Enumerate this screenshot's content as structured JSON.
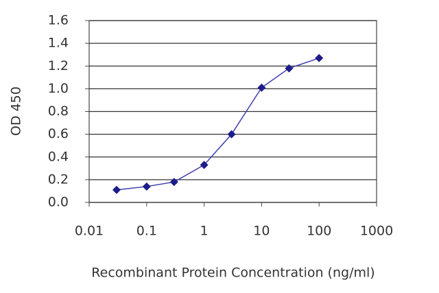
{
  "chart_data": {
    "type": "line",
    "xlabel": "Recombinant Protein Concentration (ng/ml)",
    "ylabel": "OD 450",
    "x": [
      0.03,
      0.1,
      0.3,
      1,
      3,
      10,
      30,
      100
    ],
    "series": [
      {
        "color": "#1c1c8a",
        "values": [
          0.11,
          0.14,
          0.18,
          0.33,
          0.6,
          1.01,
          1.18,
          1.27
        ]
      }
    ],
    "xscale": "log",
    "xlim": [
      0.01,
      1000
    ],
    "xticks": [
      0.01,
      0.1,
      1,
      10,
      100,
      1000
    ],
    "ylim": [
      0,
      1.6
    ],
    "yticks": [
      {
        "value": 0,
        "label": "0.0"
      },
      {
        "value": 0.2,
        "label": "0.2"
      },
      {
        "value": 0.4,
        "label": "0.4"
      },
      {
        "value": 0.6,
        "label": "0.6"
      },
      {
        "value": 0.8,
        "label": "0.8"
      },
      {
        "value": 1.0,
        "label": "1.0"
      },
      {
        "value": 1.2,
        "label": "1.2"
      },
      {
        "value": 1.4,
        "label": "1.4"
      },
      {
        "value": 1.6,
        "label": "1.6"
      }
    ],
    "grid": true
  }
}
